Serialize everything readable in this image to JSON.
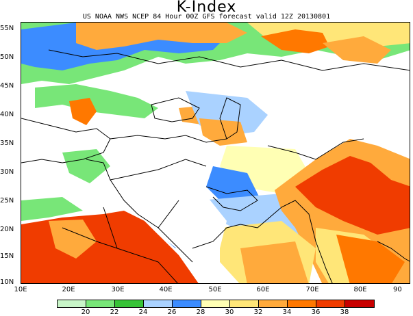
{
  "title": "K-Index",
  "subtitle": "US NOAA NWS NCEP 84 Hour 00Z GFS forecast valid 12Z 20130801",
  "map": {
    "lat_labels": [
      "55N",
      "50N",
      "45N",
      "40N",
      "35N",
      "30N",
      "25N",
      "20N",
      "15N",
      "10N"
    ],
    "lon_labels": [
      "10E",
      "20E",
      "30E",
      "40E",
      "50E",
      "60E",
      "70E",
      "80E",
      "90"
    ]
  },
  "colorbar": {
    "colors": [
      "#ffffff",
      "#c8f5c8",
      "#78e678",
      "#37c337",
      "#aad2ff",
      "#3c8cff",
      "#ffffb4",
      "#ffe678",
      "#ffaa3c",
      "#ff7800",
      "#f03c00",
      "#c80000"
    ],
    "labels": [
      "20",
      "22",
      "24",
      "26",
      "28",
      "30",
      "32",
      "34",
      "36",
      "38"
    ]
  }
}
